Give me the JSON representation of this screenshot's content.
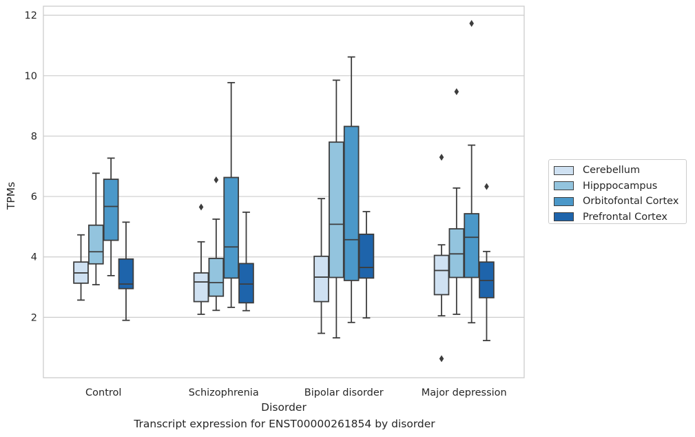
{
  "chart_data": {
    "type": "box",
    "title": "",
    "xlabel": "Disorder",
    "ylabel": "TPMs",
    "caption": "Transcript expression for ENST00000261854 by disorder",
    "ylim": [
      0,
      12.3
    ],
    "yticks": [
      2,
      4,
      6,
      8,
      10,
      12
    ],
    "grid": true,
    "legend_position": "right",
    "categories": [
      "Control",
      "Schizophrenia",
      "Bipolar disorder",
      "Major depression"
    ],
    "series": [
      {
        "name": "Cerebellum",
        "color": "#cfe1f2",
        "boxes": [
          {
            "whislo": 2.57,
            "q1": 3.13,
            "med": 3.47,
            "q3": 3.83,
            "whishi": 4.73,
            "fliers": []
          },
          {
            "whislo": 2.1,
            "q1": 2.52,
            "med": 3.17,
            "q3": 3.47,
            "whishi": 4.5,
            "fliers": [
              5.65
            ]
          },
          {
            "whislo": 1.47,
            "q1": 2.52,
            "med": 3.33,
            "q3": 4.02,
            "whishi": 5.93,
            "fliers": []
          },
          {
            "whislo": 2.05,
            "q1": 2.75,
            "med": 3.55,
            "q3": 4.05,
            "whishi": 4.4,
            "fliers": [
              7.3,
              0.63
            ]
          }
        ]
      },
      {
        "name": "Hipppocampus",
        "color": "#93c4de",
        "boxes": [
          {
            "whislo": 3.08,
            "q1": 3.77,
            "med": 4.17,
            "q3": 5.05,
            "whishi": 6.77,
            "fliers": []
          },
          {
            "whislo": 2.23,
            "q1": 2.7,
            "med": 3.15,
            "q3": 3.95,
            "whishi": 5.25,
            "fliers": [
              6.55
            ]
          },
          {
            "whislo": 1.32,
            "q1": 3.32,
            "med": 5.08,
            "q3": 7.8,
            "whishi": 9.85,
            "fliers": []
          },
          {
            "whislo": 2.1,
            "q1": 3.32,
            "med": 4.1,
            "q3": 4.93,
            "whishi": 6.28,
            "fliers": [
              9.47
            ]
          }
        ]
      },
      {
        "name": "Orbitofontal Cortex",
        "color": "#4b98c9",
        "boxes": [
          {
            "whislo": 3.38,
            "q1": 4.55,
            "med": 5.67,
            "q3": 6.57,
            "whishi": 7.27,
            "fliers": []
          },
          {
            "whislo": 2.33,
            "q1": 3.3,
            "med": 4.33,
            "q3": 6.63,
            "whishi": 9.77,
            "fliers": []
          },
          {
            "whislo": 1.83,
            "q1": 3.22,
            "med": 4.57,
            "q3": 8.32,
            "whishi": 10.62,
            "fliers": []
          },
          {
            "whislo": 1.82,
            "q1": 3.32,
            "med": 4.65,
            "q3": 5.43,
            "whishi": 7.7,
            "fliers": [
              11.73
            ]
          }
        ]
      },
      {
        "name": "Prefrontal Cortex",
        "color": "#1e64ab",
        "boxes": [
          {
            "whislo": 1.9,
            "q1": 2.95,
            "med": 3.1,
            "q3": 3.93,
            "whishi": 5.15,
            "fliers": []
          },
          {
            "whislo": 2.22,
            "q1": 2.48,
            "med": 3.1,
            "q3": 3.78,
            "whishi": 5.48,
            "fliers": []
          },
          {
            "whislo": 1.98,
            "q1": 3.3,
            "med": 3.65,
            "q3": 4.75,
            "whishi": 5.5,
            "fliers": []
          },
          {
            "whislo": 1.23,
            "q1": 2.65,
            "med": 3.22,
            "q3": 3.83,
            "whishi": 4.18,
            "fliers": [
              6.33
            ]
          }
        ]
      }
    ]
  }
}
